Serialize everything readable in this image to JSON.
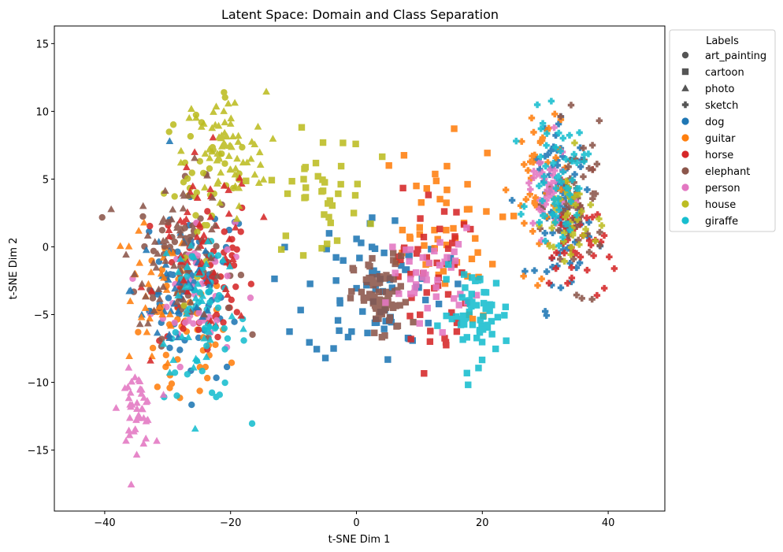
{
  "chart_data": {
    "type": "scatter",
    "title": "Latent Space: Domain and Class Separation",
    "xlabel": "t-SNE Dim 1",
    "ylabel": "t-SNE Dim 2",
    "xlim": [
      -48,
      49
    ],
    "ylim": [
      -19.5,
      16.3
    ],
    "xticks": [
      -40,
      -20,
      0,
      20,
      40
    ],
    "yticks": [
      -15,
      -10,
      -5,
      0,
      5,
      10,
      15
    ],
    "xtick_labels": [
      "−40",
      "−20",
      "0",
      "20",
      "40"
    ],
    "ytick_labels": [
      "−15",
      "−10",
      "−5",
      "0",
      "5",
      "10",
      "15"
    ],
    "grid": false,
    "legend": {
      "title": "Labels",
      "placement": "upper right, outside plot",
      "domains": [
        {
          "name": "art_painting",
          "marker": "circle"
        },
        {
          "name": "cartoon",
          "marker": "square"
        },
        {
          "name": "photo",
          "marker": "triangle"
        },
        {
          "name": "sketch",
          "marker": "plus"
        }
      ],
      "classes": [
        {
          "name": "dog",
          "color": "#1f77b4"
        },
        {
          "name": "guitar",
          "color": "#ff7f0e"
        },
        {
          "name": "horse",
          "color": "#d62728"
        },
        {
          "name": "elephant",
          "color": "#8c564b"
        },
        {
          "name": "person",
          "color": "#e377c2"
        },
        {
          "name": "house",
          "color": "#bcbd22"
        },
        {
          "name": "giraffe",
          "color": "#17becf"
        }
      ],
      "domain_marker_color": "#555555"
    },
    "clusters": [
      {
        "domain": "art_painting",
        "class": "dog",
        "cx": -25,
        "cy": -3,
        "sx": 7,
        "sy": 6,
        "n": 55
      },
      {
        "domain": "art_painting",
        "class": "guitar",
        "cx": -28,
        "cy": -7,
        "sx": 7,
        "sy": 5,
        "n": 45
      },
      {
        "domain": "art_painting",
        "class": "horse",
        "cx": -24,
        "cy": -2,
        "sx": 7,
        "sy": 6,
        "n": 50
      },
      {
        "domain": "art_painting",
        "class": "elephant",
        "cx": -27,
        "cy": -1,
        "sx": 7,
        "sy": 5,
        "n": 60
      },
      {
        "domain": "art_painting",
        "class": "person",
        "cx": -26,
        "cy": -3,
        "sx": 6,
        "sy": 5,
        "n": 40
      },
      {
        "domain": "art_painting",
        "class": "house",
        "cx": -24,
        "cy": 5,
        "sx": 6,
        "sy": 5,
        "n": 40
      },
      {
        "domain": "art_painting",
        "class": "giraffe",
        "cx": -24,
        "cy": -6,
        "sx": 6,
        "sy": 5,
        "n": 45
      },
      {
        "domain": "photo",
        "class": "dog",
        "cx": -28,
        "cy": -3,
        "sx": 7,
        "sy": 6,
        "n": 40
      },
      {
        "domain": "photo",
        "class": "guitar",
        "cx": -33,
        "cy": -4,
        "sx": 6,
        "sy": 5,
        "n": 30
      },
      {
        "domain": "photo",
        "class": "horse",
        "cx": -24,
        "cy": 0,
        "sx": 7,
        "sy": 6,
        "n": 50
      },
      {
        "domain": "photo",
        "class": "elephant",
        "cx": -28,
        "cy": 0,
        "sx": 7,
        "sy": 5,
        "n": 55
      },
      {
        "domain": "photo",
        "class": "person",
        "cx": -35,
        "cy": -12,
        "sx": 2.5,
        "sy": 2.5,
        "n": 45
      },
      {
        "domain": "photo",
        "class": "house",
        "cx": -21,
        "cy": 7,
        "sx": 6,
        "sy": 4,
        "n": 70
      },
      {
        "domain": "photo",
        "class": "giraffe",
        "cx": -25,
        "cy": -4,
        "sx": 6,
        "sy": 6,
        "n": 40
      },
      {
        "domain": "cartoon",
        "class": "dog",
        "cx": 3,
        "cy": -3,
        "sx": 10,
        "sy": 5,
        "n": 70
      },
      {
        "domain": "cartoon",
        "class": "guitar",
        "cx": 12,
        "cy": 1,
        "sx": 10,
        "sy": 6,
        "n": 50
      },
      {
        "domain": "cartoon",
        "class": "horse",
        "cx": 12,
        "cy": -2,
        "sx": 5,
        "sy": 6,
        "n": 45
      },
      {
        "domain": "cartoon",
        "class": "elephant",
        "cx": 4,
        "cy": -4,
        "sx": 4,
        "sy": 3,
        "n": 75
      },
      {
        "domain": "cartoon",
        "class": "person",
        "cx": 12,
        "cy": -2,
        "sx": 6,
        "sy": 3,
        "n": 40
      },
      {
        "domain": "cartoon",
        "class": "house",
        "cx": -6,
        "cy": 4,
        "sx": 7,
        "sy": 4,
        "n": 40
      },
      {
        "domain": "cartoon",
        "class": "giraffe",
        "cx": 19,
        "cy": -5,
        "sx": 5,
        "sy": 3,
        "n": 60
      },
      {
        "domain": "sketch",
        "class": "dog",
        "cx": 33,
        "cy": 3,
        "sx": 4,
        "sy": 5,
        "n": 90
      },
      {
        "domain": "sketch",
        "class": "guitar",
        "cx": 29,
        "cy": 5,
        "sx": 4,
        "sy": 6,
        "n": 45
      },
      {
        "domain": "sketch",
        "class": "horse",
        "cx": 35,
        "cy": 0,
        "sx": 4,
        "sy": 4,
        "n": 45
      },
      {
        "domain": "sketch",
        "class": "elephant",
        "cx": 35,
        "cy": 3,
        "sx": 4,
        "sy": 5,
        "n": 60
      },
      {
        "domain": "sketch",
        "class": "person",
        "cx": 30,
        "cy": 4,
        "sx": 3,
        "sy": 3,
        "n": 40
      },
      {
        "domain": "sketch",
        "class": "house",
        "cx": 34,
        "cy": 2,
        "sx": 4,
        "sy": 4,
        "n": 40
      },
      {
        "domain": "sketch",
        "class": "giraffe",
        "cx": 32,
        "cy": 5,
        "sx": 4,
        "sy": 4,
        "n": 60
      }
    ]
  }
}
